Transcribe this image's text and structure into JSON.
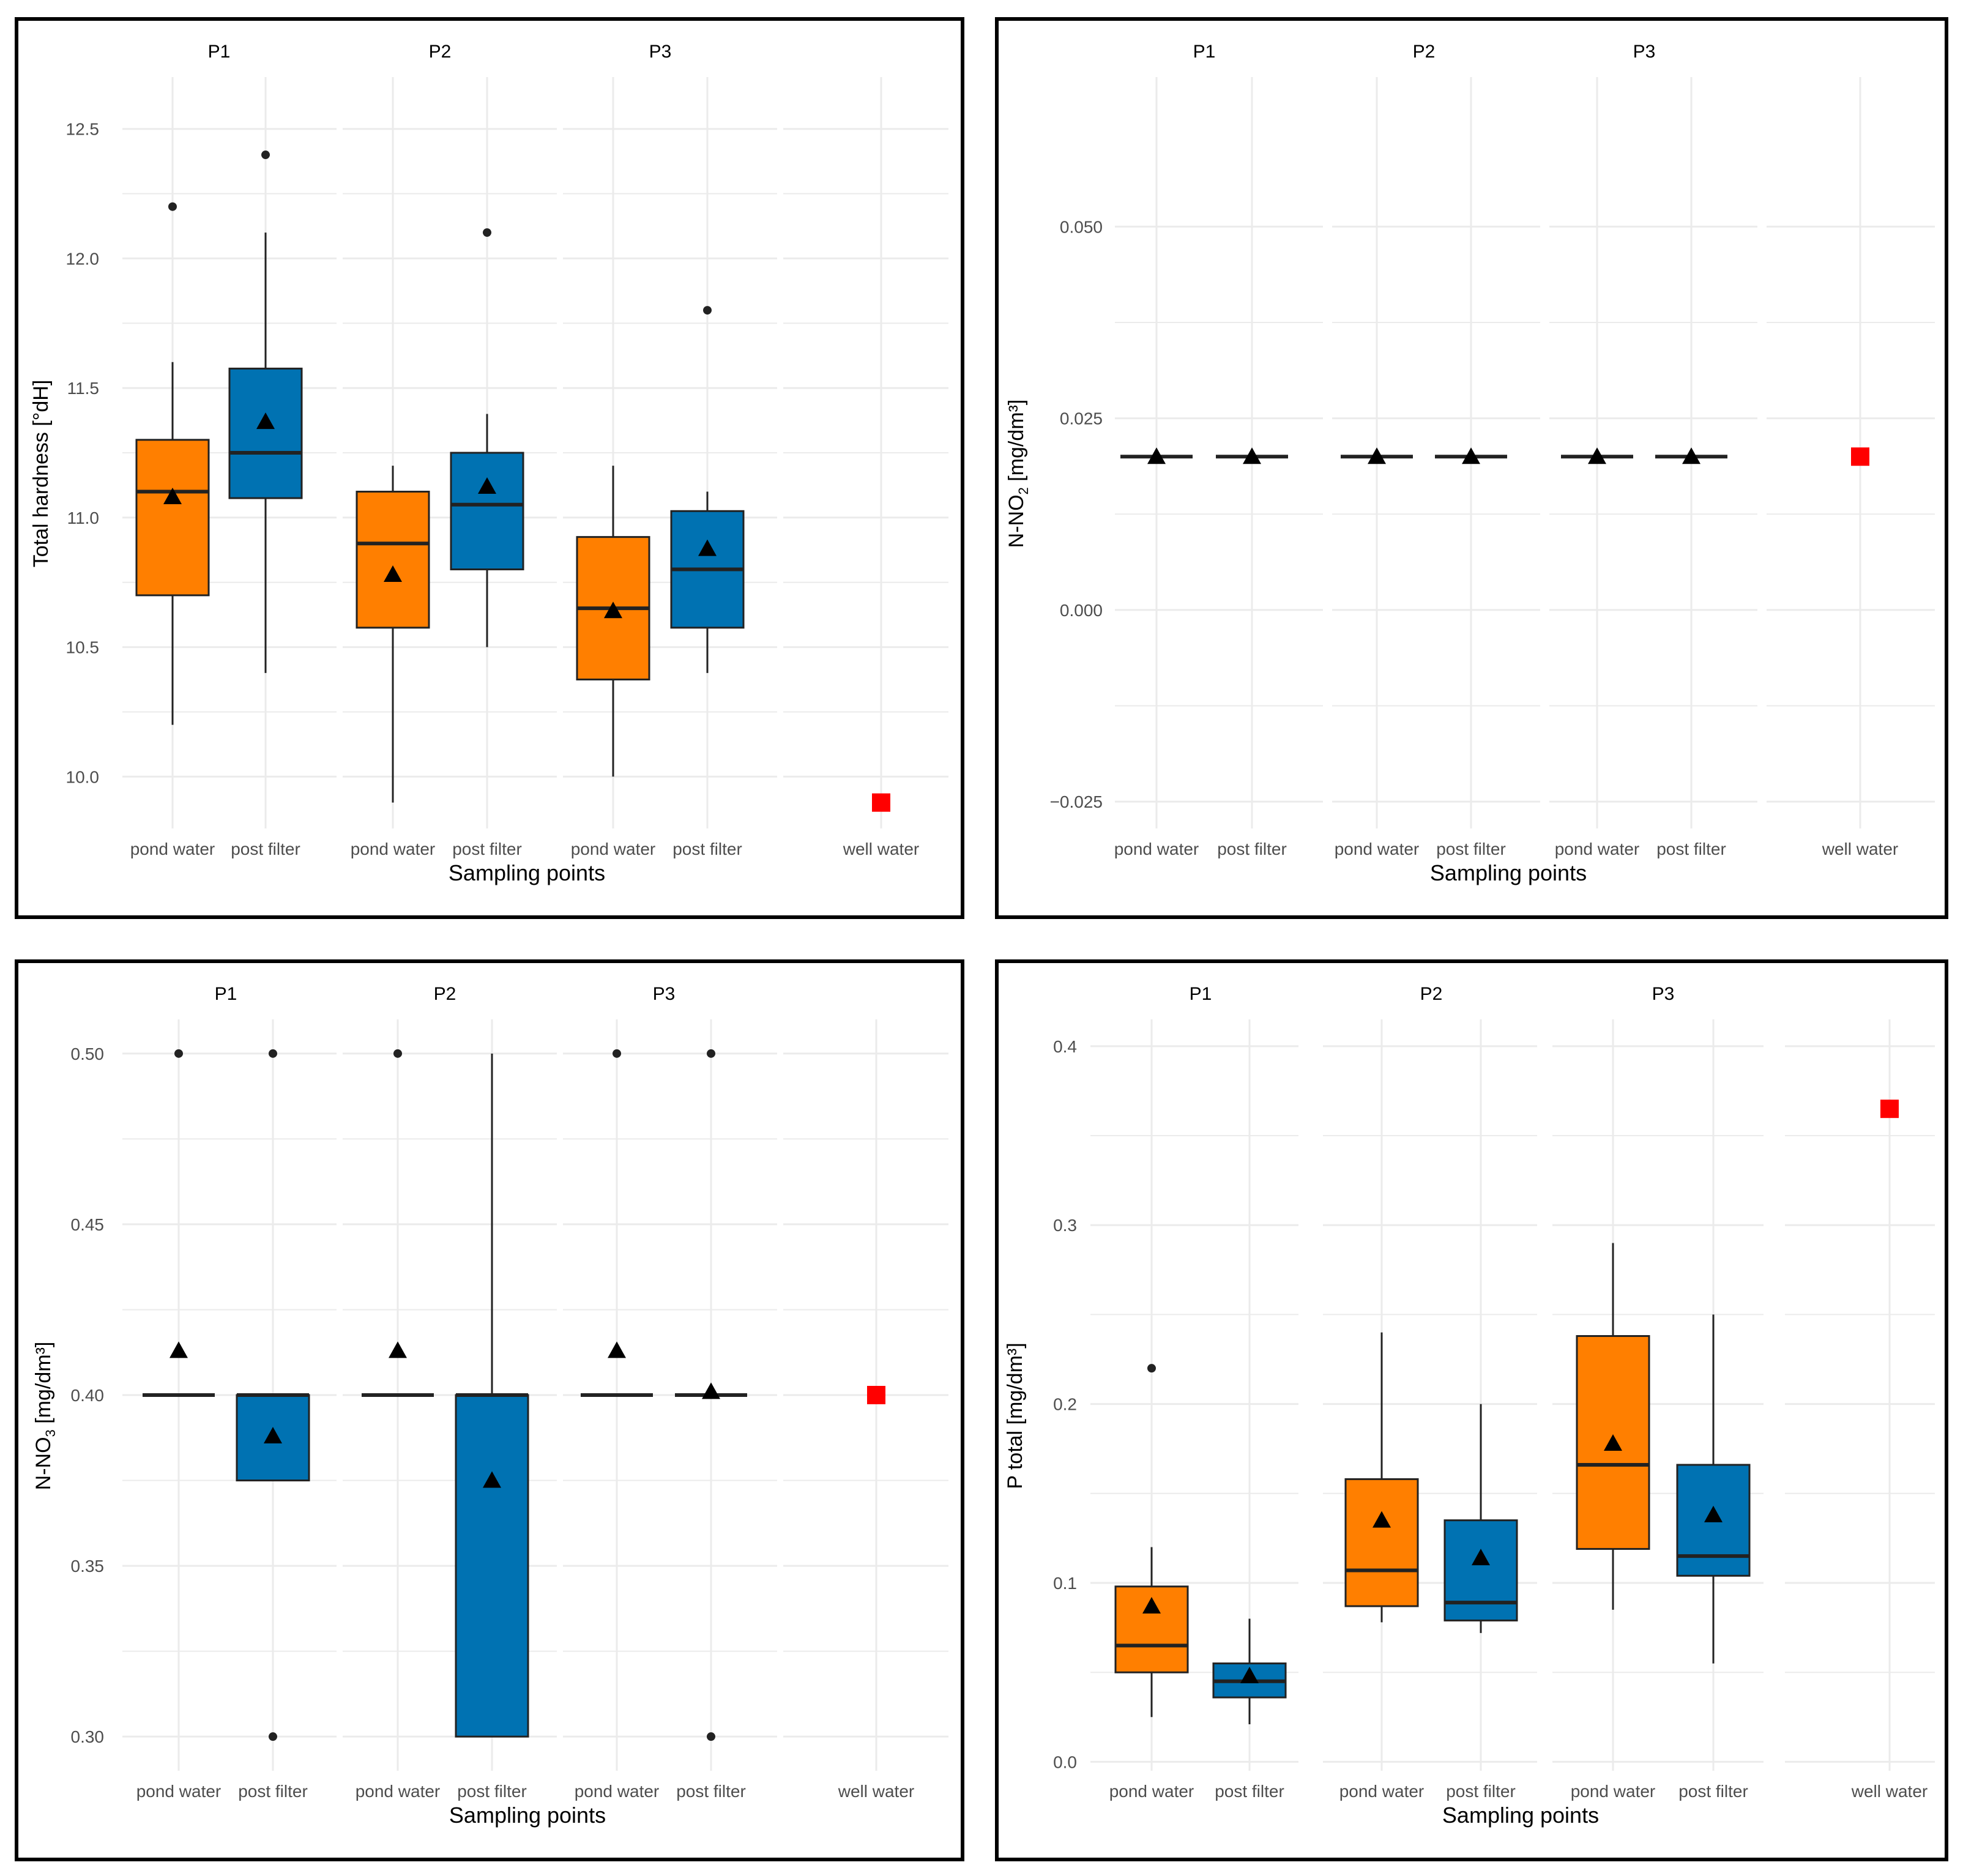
{
  "colors": {
    "pond": "#FF7F00",
    "post": "#0072B2",
    "well": "#FF0000",
    "grid": "#EBEBEB",
    "ink": "#000000",
    "tick": "#4D4D4D"
  },
  "chart_data": [
    {
      "type": "box",
      "ylabel_main": "Total hardness [°dH]",
      "ylabel_sub": "",
      "ylabel_sup": "",
      "ylabel_after": "",
      "xlabel": "Sampling points",
      "facets": [
        "P1",
        "P2",
        "P3",
        ""
      ],
      "ylim": [
        9.8,
        12.7
      ],
      "yticks": [
        10.0,
        10.5,
        11.0,
        11.5,
        12.0,
        12.5
      ],
      "ytick_labels": [
        "10.0",
        "10.5",
        "11.0",
        "11.5",
        "12.0",
        "12.5"
      ],
      "boxes": [
        {
          "facet": 0,
          "category": "pond water",
          "group": "pond",
          "whisker_low": 10.2,
          "q1": 10.7,
          "median": 11.1,
          "q3": 11.3,
          "whisker_high": 11.6,
          "mean": 11.08,
          "outliers": [
            12.2
          ]
        },
        {
          "facet": 0,
          "category": "post filter",
          "group": "post",
          "whisker_low": 10.4,
          "q1": 11.075,
          "median": 11.25,
          "q3": 11.575,
          "whisker_high": 12.1,
          "mean": 11.37,
          "outliers": [
            12.4
          ]
        },
        {
          "facet": 1,
          "category": "pond water",
          "group": "pond",
          "whisker_low": 9.9,
          "q1": 10.575,
          "median": 10.9,
          "q3": 11.1,
          "whisker_high": 11.2,
          "mean": 10.78,
          "outliers": []
        },
        {
          "facet": 1,
          "category": "post filter",
          "group": "post",
          "whisker_low": 10.5,
          "q1": 10.8,
          "median": 11.05,
          "q3": 11.25,
          "whisker_high": 11.4,
          "mean": 11.12,
          "outliers": [
            12.1
          ]
        },
        {
          "facet": 2,
          "category": "pond water",
          "group": "pond",
          "whisker_low": 10.0,
          "q1": 10.375,
          "median": 10.65,
          "q3": 10.925,
          "whisker_high": 11.2,
          "mean": 10.64,
          "outliers": []
        },
        {
          "facet": 2,
          "category": "post filter",
          "group": "post",
          "whisker_low": 10.4,
          "q1": 10.575,
          "median": 10.8,
          "q3": 11.025,
          "whisker_high": 11.1,
          "mean": 10.88,
          "outliers": [
            11.8
          ]
        }
      ],
      "well": {
        "facet": 3,
        "category": "well water",
        "value": 9.9
      }
    },
    {
      "type": "box",
      "ylabel_main": "N-NO",
      "ylabel_sub": "2",
      "ylabel_sup": "",
      "ylabel_after": " [mg/dm³]",
      "xlabel": "Sampling points",
      "facets": [
        "P1",
        "P2",
        "P3",
        ""
      ],
      "ylim": [
        -0.0285,
        0.0695
      ],
      "yticks": [
        -0.025,
        0.0,
        0.025,
        0.05
      ],
      "ytick_labels": [
        "−0.025",
        "0.000",
        "0.025",
        "0.050"
      ],
      "boxes": [
        {
          "facet": 0,
          "category": "pond water",
          "group": "pond",
          "whisker_low": 0.02,
          "q1": 0.02,
          "median": 0.02,
          "q3": 0.02,
          "whisker_high": 0.02,
          "mean": 0.02,
          "outliers": []
        },
        {
          "facet": 0,
          "category": "post filter",
          "group": "post",
          "whisker_low": 0.02,
          "q1": 0.02,
          "median": 0.02,
          "q3": 0.02,
          "whisker_high": 0.02,
          "mean": 0.02,
          "outliers": []
        },
        {
          "facet": 1,
          "category": "pond water",
          "group": "pond",
          "whisker_low": 0.02,
          "q1": 0.02,
          "median": 0.02,
          "q3": 0.02,
          "whisker_high": 0.02,
          "mean": 0.02,
          "outliers": []
        },
        {
          "facet": 1,
          "category": "post filter",
          "group": "post",
          "whisker_low": 0.02,
          "q1": 0.02,
          "median": 0.02,
          "q3": 0.02,
          "whisker_high": 0.02,
          "mean": 0.02,
          "outliers": []
        },
        {
          "facet": 2,
          "category": "pond water",
          "group": "pond",
          "whisker_low": 0.02,
          "q1": 0.02,
          "median": 0.02,
          "q3": 0.02,
          "whisker_high": 0.02,
          "mean": 0.02,
          "outliers": []
        },
        {
          "facet": 2,
          "category": "post filter",
          "group": "post",
          "whisker_low": 0.02,
          "q1": 0.02,
          "median": 0.02,
          "q3": 0.02,
          "whisker_high": 0.02,
          "mean": 0.02,
          "outliers": []
        }
      ],
      "well": {
        "facet": 3,
        "category": "well water",
        "value": 0.02
      }
    },
    {
      "type": "box",
      "ylabel_main": "N-NO",
      "ylabel_sub": "3",
      "ylabel_sup": "",
      "ylabel_after": " [mg/dm³]",
      "xlabel": "Sampling points",
      "facets": [
        "P1",
        "P2",
        "P3",
        ""
      ],
      "ylim": [
        0.29,
        0.51
      ],
      "yticks": [
        0.3,
        0.35,
        0.4,
        0.45,
        0.5
      ],
      "ytick_labels": [
        "0.30",
        "0.35",
        "0.40",
        "0.45",
        "0.50"
      ],
      "boxes": [
        {
          "facet": 0,
          "category": "pond water",
          "group": "pond",
          "whisker_low": 0.4,
          "q1": 0.4,
          "median": 0.4,
          "q3": 0.4,
          "whisker_high": 0.4,
          "mean": 0.413,
          "outliers": [
            0.5
          ]
        },
        {
          "facet": 0,
          "category": "post filter",
          "group": "post",
          "whisker_low": 0.375,
          "q1": 0.375,
          "median": 0.4,
          "q3": 0.4,
          "whisker_high": 0.4,
          "mean": 0.388,
          "outliers": [
            0.5,
            0.3
          ]
        },
        {
          "facet": 1,
          "category": "pond water",
          "group": "pond",
          "whisker_low": 0.4,
          "q1": 0.4,
          "median": 0.4,
          "q3": 0.4,
          "whisker_high": 0.4,
          "mean": 0.413,
          "outliers": [
            0.5
          ]
        },
        {
          "facet": 1,
          "category": "post filter",
          "group": "post",
          "whisker_low": 0.3,
          "q1": 0.3,
          "median": 0.4,
          "q3": 0.4,
          "whisker_high": 0.5,
          "mean": 0.375,
          "outliers": []
        },
        {
          "facet": 2,
          "category": "pond water",
          "group": "pond",
          "whisker_low": 0.4,
          "q1": 0.4,
          "median": 0.4,
          "q3": 0.4,
          "whisker_high": 0.4,
          "mean": 0.413,
          "outliers": [
            0.5
          ]
        },
        {
          "facet": 2,
          "category": "post filter",
          "group": "post",
          "whisker_low": 0.4,
          "q1": 0.4,
          "median": 0.4,
          "q3": 0.4,
          "whisker_high": 0.4,
          "mean": 0.401,
          "outliers": [
            0.5,
            0.3
          ]
        }
      ],
      "well": {
        "facet": 3,
        "category": "well water",
        "value": 0.4
      }
    },
    {
      "type": "box",
      "ylabel_main": "P total [mg/dm³]",
      "ylabel_sub": "",
      "ylabel_sup": "",
      "ylabel_after": "",
      "xlabel": "Sampling points",
      "facets": [
        "P1",
        "P2",
        "P3",
        ""
      ],
      "ylim": [
        -0.005,
        0.415
      ],
      "yticks": [
        0.0,
        0.1,
        0.2,
        0.3,
        0.4
      ],
      "ytick_labels": [
        "0.0",
        "0.1",
        "0.2",
        "0.3",
        "0.4"
      ],
      "boxes": [
        {
          "facet": 0,
          "category": "pond water",
          "group": "pond",
          "whisker_low": 0.025,
          "q1": 0.05,
          "median": 0.065,
          "q3": 0.098,
          "whisker_high": 0.12,
          "mean": 0.087,
          "outliers": [
            0.22
          ]
        },
        {
          "facet": 0,
          "category": "post filter",
          "group": "post",
          "whisker_low": 0.021,
          "q1": 0.036,
          "median": 0.045,
          "q3": 0.055,
          "whisker_high": 0.08,
          "mean": 0.048,
          "outliers": []
        },
        {
          "facet": 1,
          "category": "pond water",
          "group": "pond",
          "whisker_low": 0.078,
          "q1": 0.087,
          "median": 0.107,
          "q3": 0.158,
          "whisker_high": 0.24,
          "mean": 0.135,
          "outliers": []
        },
        {
          "facet": 1,
          "category": "post filter",
          "group": "post",
          "whisker_low": 0.072,
          "q1": 0.079,
          "median": 0.089,
          "q3": 0.135,
          "whisker_high": 0.2,
          "mean": 0.114,
          "outliers": []
        },
        {
          "facet": 2,
          "category": "pond water",
          "group": "pond",
          "whisker_low": 0.085,
          "q1": 0.119,
          "median": 0.166,
          "q3": 0.238,
          "whisker_high": 0.29,
          "mean": 0.178,
          "outliers": []
        },
        {
          "facet": 2,
          "category": "post filter",
          "group": "post",
          "whisker_low": 0.055,
          "q1": 0.104,
          "median": 0.115,
          "q3": 0.166,
          "whisker_high": 0.25,
          "mean": 0.138,
          "outliers": []
        }
      ],
      "well": {
        "facet": 3,
        "category": "well water",
        "value": 0.365
      }
    }
  ]
}
